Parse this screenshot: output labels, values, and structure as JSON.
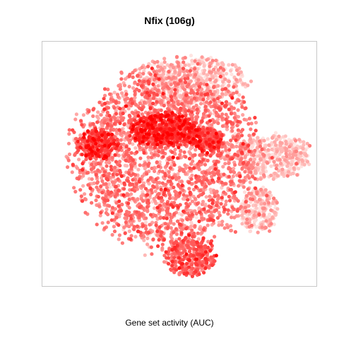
{
  "chart_data": {
    "type": "scatter",
    "title": "Nfix (106g)",
    "xlabel": "Gene set activity (AUC)",
    "ylabel": "",
    "axes_visible": false,
    "grid": false,
    "legend": "none",
    "color_low": "#ffe4e1",
    "color_high": "#ff0000",
    "xlim": [
      0,
      1
    ],
    "ylim": [
      0,
      1
    ],
    "clusters": [
      {
        "name": "main-body",
        "cx": 0.45,
        "cy": 0.52,
        "rx": 0.33,
        "ry": 0.36,
        "n": 2600,
        "activity": 0.42
      },
      {
        "name": "top-center",
        "cx": 0.54,
        "cy": 0.84,
        "rx": 0.2,
        "ry": 0.1,
        "n": 520,
        "activity": 0.15
      },
      {
        "name": "hotspot-center",
        "cx": 0.44,
        "cy": 0.64,
        "rx": 0.12,
        "ry": 0.07,
        "n": 500,
        "activity": 0.78
      },
      {
        "name": "hotspot-left",
        "cx": 0.2,
        "cy": 0.58,
        "rx": 0.07,
        "ry": 0.06,
        "n": 220,
        "activity": 0.72
      },
      {
        "name": "hotspot-right",
        "cx": 0.6,
        "cy": 0.6,
        "rx": 0.06,
        "ry": 0.05,
        "n": 160,
        "activity": 0.7
      },
      {
        "name": "bottom-lobe",
        "cx": 0.54,
        "cy": 0.12,
        "rx": 0.09,
        "ry": 0.08,
        "n": 320,
        "activity": 0.55
      },
      {
        "name": "right-cluster",
        "cx": 0.85,
        "cy": 0.53,
        "rx": 0.13,
        "ry": 0.09,
        "n": 420,
        "activity": 0.12
      },
      {
        "name": "lower-right",
        "cx": 0.79,
        "cy": 0.31,
        "rx": 0.07,
        "ry": 0.09,
        "n": 230,
        "activity": 0.15
      }
    ]
  }
}
